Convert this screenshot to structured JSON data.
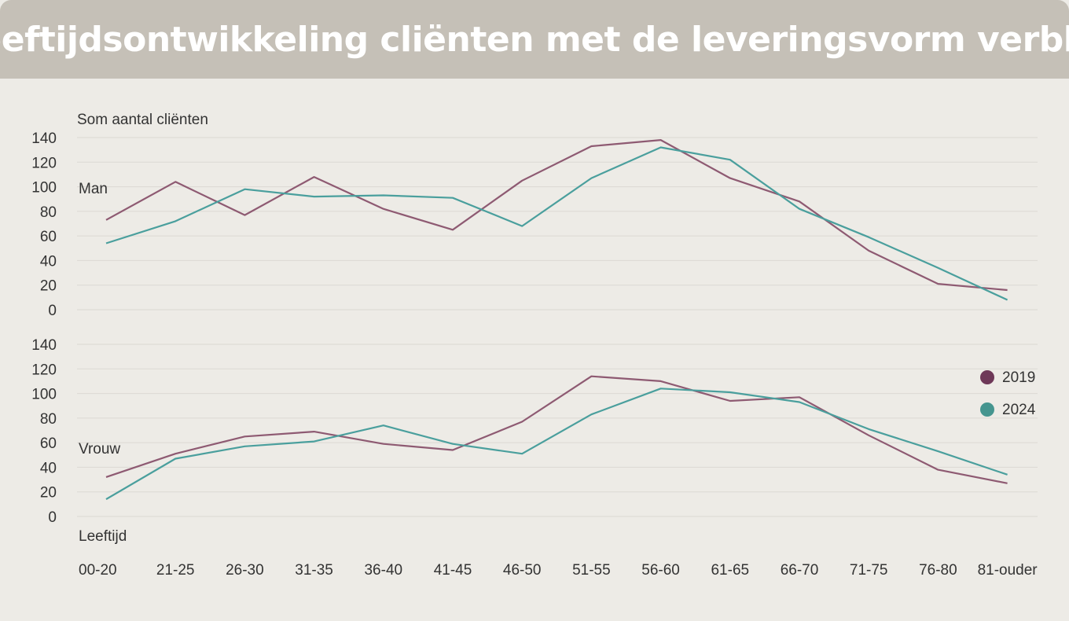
{
  "title": "Leeftijdsontwikkeling cliënten met de leveringsvorm verblijf",
  "colors": {
    "2019": "#8e5a72",
    "2024": "#4a9f9d",
    "legend_2019": "#6e3858",
    "legend_2024": "#45958f"
  },
  "legend": [
    "2019",
    "2024"
  ],
  "chart_data": [
    {
      "type": "line",
      "panel_label": "Man",
      "ylabel": "Som aantal cliënten",
      "ylim": [
        0,
        140
      ],
      "yticks": [
        0,
        20,
        40,
        60,
        80,
        100,
        120,
        140
      ],
      "categories": [
        "00-20",
        "21-25",
        "26-30",
        "31-35",
        "36-40",
        "41-45",
        "46-50",
        "51-55",
        "56-60",
        "61-65",
        "66-70",
        "71-75",
        "76-80",
        "81-ouder"
      ],
      "series": [
        {
          "name": "2019",
          "values": [
            73,
            104,
            77,
            108,
            82,
            65,
            105,
            133,
            138,
            107,
            88,
            48,
            21,
            16
          ]
        },
        {
          "name": "2024",
          "values": [
            54,
            72,
            98,
            92,
            93,
            91,
            68,
            107,
            132,
            122,
            82,
            59,
            34,
            8
          ]
        }
      ]
    },
    {
      "type": "line",
      "panel_label": "Vrouw",
      "xlabel": "Leeftijd",
      "ylim": [
        0,
        140
      ],
      "yticks": [
        0,
        20,
        40,
        60,
        80,
        100,
        120,
        140
      ],
      "categories": [
        "00-20",
        "21-25",
        "26-30",
        "31-35",
        "36-40",
        "41-45",
        "46-50",
        "51-55",
        "56-60",
        "61-65",
        "66-70",
        "71-75",
        "76-80",
        "81-ouder"
      ],
      "series": [
        {
          "name": "2019",
          "values": [
            32,
            51,
            65,
            69,
            59,
            54,
            77,
            114,
            110,
            94,
            97,
            66,
            38,
            27
          ]
        },
        {
          "name": "2024",
          "values": [
            14,
            47,
            57,
            61,
            74,
            59,
            51,
            83,
            104,
            101,
            93,
            71,
            53,
            34
          ]
        }
      ]
    }
  ]
}
